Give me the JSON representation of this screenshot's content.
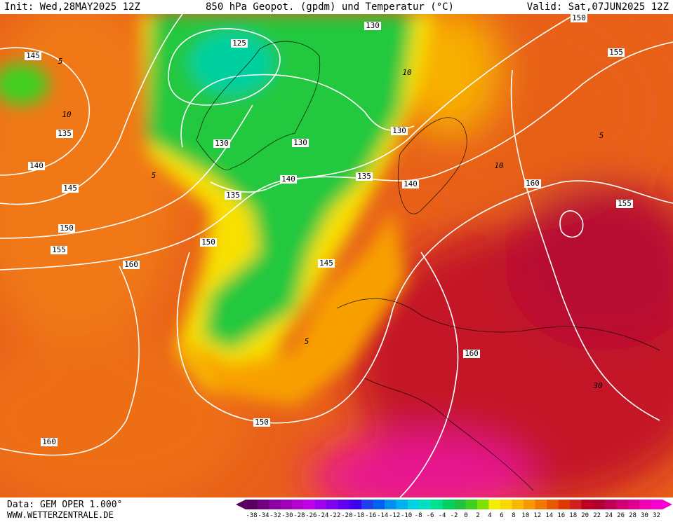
{
  "header": {
    "init": "Init: Wed,28MAY2025 12Z",
    "title": "850 hPa Geopot. (gpdm) und Temperatur (°C)",
    "valid": "Valid: Sat,07JUN2025 12Z"
  },
  "footer": {
    "source": "Data: GEM OPER 1.000°",
    "website": "WWW.WETTERZENTRALE.DE"
  },
  "colorbar": {
    "labels": [
      -38,
      -34,
      -32,
      -30,
      -28,
      -26,
      -24,
      -22,
      -20,
      -18,
      -16,
      -14,
      -12,
      -10,
      -8,
      -6,
      -4,
      -2,
      0,
      2,
      4,
      6,
      8,
      10,
      12,
      14,
      16,
      18,
      20,
      22,
      24,
      26,
      28,
      30,
      32
    ],
    "colors": [
      "#5a0060",
      "#700080",
      "#8a00a0",
      "#a000b8",
      "#b400d0",
      "#c000e8",
      "#a000f0",
      "#8000f0",
      "#6000f0",
      "#4000f0",
      "#2040f0",
      "#0060f0",
      "#0090f0",
      "#00b0f0",
      "#00d0e0",
      "#00e0c0",
      "#00e090",
      "#00d060",
      "#20c040",
      "#40d020",
      "#80e000",
      "#f0f000",
      "#f8d800",
      "#f8b800",
      "#f89800",
      "#f07800",
      "#e85800",
      "#e03800",
      "#d02020",
      "#c00020",
      "#b00030",
      "#c00050",
      "#d00070",
      "#e00090",
      "#f000b0",
      "#f800d0"
    ]
  },
  "map": {
    "geopotential_labels": [
      145,
      135,
      140,
      145,
      150,
      155,
      160,
      125,
      130,
      130,
      130,
      130,
      135,
      140,
      135,
      140,
      150,
      155,
      160,
      155,
      150,
      145,
      160,
      150,
      160
    ],
    "temperature_labels": [
      5,
      10,
      5,
      10,
      10,
      5,
      30,
      5
    ]
  }
}
